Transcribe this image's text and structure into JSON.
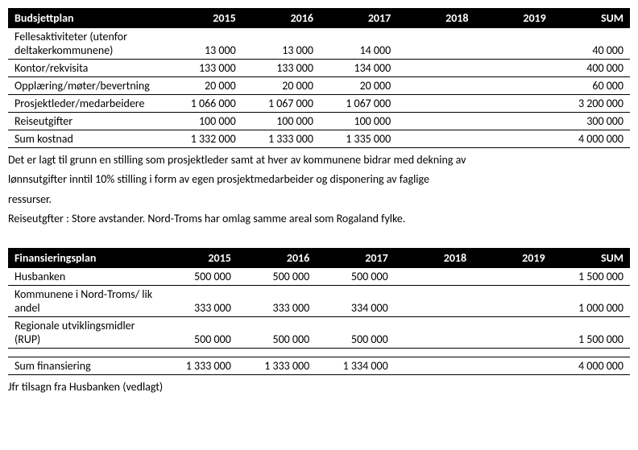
{
  "budget": {
    "title": "Budsjettplan",
    "years": [
      "2015",
      "2016",
      "2017",
      "2018",
      "2019",
      "SUM"
    ],
    "rows": [
      {
        "label": "Fellesaktiviteter (utenfor deltakerkommunene)",
        "v": [
          "13 000",
          "13 000",
          "14 000",
          "",
          "",
          "40 000"
        ]
      },
      {
        "label": "Kontor/rekvisita",
        "v": [
          "133 000",
          "133 000",
          "134 000",
          "",
          "",
          "400 000"
        ]
      },
      {
        "label": "Opplæring/møter/bevertning",
        "v": [
          "20 000",
          "20 000",
          "20 000",
          "",
          "",
          "60 000"
        ]
      },
      {
        "label": "Prosjektleder/medarbeidere",
        "v": [
          "1 066 000",
          "1 067 000",
          "1 067 000",
          "",
          "",
          "3 200 000"
        ]
      },
      {
        "label": "Reiseutgifter",
        "v": [
          "100 000",
          "100 000",
          "100 000",
          "",
          "",
          "300 000"
        ]
      }
    ],
    "sum": {
      "label": "Sum kostnad",
      "v": [
        "1 332 000",
        "1 333 000",
        "1 335 000",
        "",
        "",
        "4 000 000"
      ]
    },
    "note1": "Det er lagt til grunn en stilling som prosjektleder samt at hver av kommunene bidrar med dekning av",
    "note2": "lønnsutgifter inntil 10% stilling i form av egen prosjektmedarbeider og disponering av faglige",
    "note3": "ressurser.",
    "note4": "Reiseutgfter : Store avstander. Nord-Troms har omlag samme areal som Rogaland fylke."
  },
  "financing": {
    "title": "Finansieringsplan",
    "years": [
      "2015",
      "2016",
      "2017",
      "2018",
      "2019",
      "SUM"
    ],
    "rows": [
      {
        "label": "Husbanken",
        "v": [
          "500 000",
          "500 000",
          "500 000",
          "",
          "",
          "1 500 000"
        ]
      },
      {
        "label": "Kommunene i Nord-Troms/ lik andel",
        "v": [
          "333 000",
          "333 000",
          "334 000",
          "",
          "",
          "1 000 000"
        ]
      },
      {
        "label": "Regionale utviklingsmidler (RUP)",
        "v": [
          "500 000",
          "500 000",
          "500 000",
          "",
          "",
          "1 500 000"
        ]
      }
    ],
    "sum": {
      "label": "Sum finansiering",
      "v": [
        "1 333 000",
        "1 333 000",
        "1 334 000",
        "",
        "",
        "4 000 000"
      ]
    },
    "footnote": "Jfr tilsagn fra Husbanken (vedlagt)"
  },
  "style": {
    "header_bg": "#000000",
    "header_fg": "#ffffff",
    "border_color": "#000000",
    "font": "Calibri",
    "font_size_pt": 11
  }
}
